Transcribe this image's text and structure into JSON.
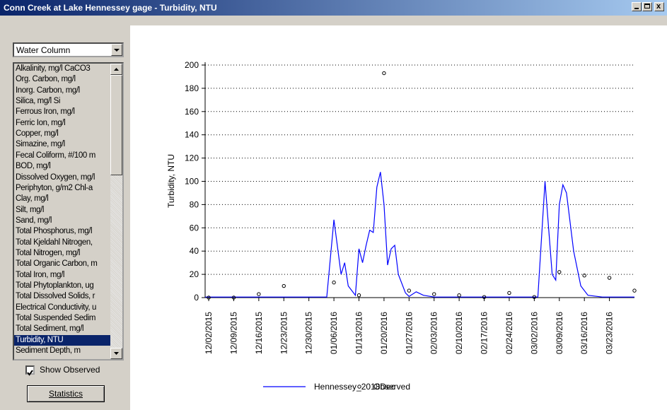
{
  "window": {
    "title": "Conn Creek at Lake Hennessey gage - Turbidity, NTU"
  },
  "panel": {
    "dropdown": "Water Column",
    "list": [
      "Alkalinity, mg/l CaCO3",
      "Org. Carbon, mg/l",
      "Inorg. Carbon, mg/l",
      "Silica, mg/l Si",
      "Ferrous Iron, mg/l",
      "Ferric Ion, mg/l",
      "Copper, mg/l",
      "Simazine, mg/l",
      "Fecal Coliform, #/100 m",
      "BOD, mg/l",
      "Dissolved Oxygen, mg/l",
      "Periphyton, g/m2 Chl-a",
      "Clay, mg/l",
      "Silt, mg/l",
      "Sand, mg/l",
      "Total Phosphorus, mg/l",
      "Total Kjeldahl Nitrogen,",
      "Total Nitrogen, mg/l",
      "Total Organic Carbon, m",
      "Total Iron, mg/l",
      "Total Phytoplankton, ug",
      "Total Dissolved Solids, r",
      "Electrical Conductivity, u",
      "Total Suspended Sedim",
      "Total Sediment, mg/l",
      "Turbidity, NTU",
      "Sediment Depth, m"
    ],
    "selected_index": 25,
    "checkbox": {
      "label": "Show Observed",
      "checked": true
    },
    "button": "Statistics"
  },
  "chart_data": {
    "type": "line",
    "y_label": "Turbidity, NTU",
    "xlim": [
      "2015-12-01",
      "2016-03-30"
    ],
    "xticks": [
      {
        "value": "2015-12-02",
        "label": "12/02/2015"
      },
      {
        "value": "2015-12-09",
        "label": "12/09/2015"
      },
      {
        "value": "2015-12-16",
        "label": "12/16/2015"
      },
      {
        "value": "2015-12-23",
        "label": "12/23/2015"
      },
      {
        "value": "2015-12-30",
        "label": "12/30/2015"
      },
      {
        "value": "2016-01-06",
        "label": "01/06/2016"
      },
      {
        "value": "2016-01-13",
        "label": "01/13/2016"
      },
      {
        "value": "2016-01-20",
        "label": "01/20/2016"
      },
      {
        "value": "2016-01-27",
        "label": "01/27/2016"
      },
      {
        "value": "2016-02-03",
        "label": "02/03/2016"
      },
      {
        "value": "2016-02-10",
        "label": "02/10/2016"
      },
      {
        "value": "2016-02-17",
        "label": "02/17/2016"
      },
      {
        "value": "2016-02-24",
        "label": "02/24/2016"
      },
      {
        "value": "2016-03-02",
        "label": "03/02/2016"
      },
      {
        "value": "2016-03-09",
        "label": "03/09/2016"
      },
      {
        "value": "2016-03-16",
        "label": "03/16/2016"
      },
      {
        "value": "2016-03-23",
        "label": "03/23/2016"
      }
    ],
    "ylim": [
      0,
      200
    ],
    "yticks": [
      0,
      20,
      40,
      60,
      80,
      100,
      120,
      140,
      160,
      180,
      200
    ],
    "grid": true,
    "legend": "bottom",
    "series": [
      {
        "name": "Hennessey_2018Dec",
        "color": "#0000ff",
        "style": "line",
        "x": [
          "2015-12-01",
          "2016-01-04",
          "2016-01-06",
          "2016-01-08",
          "2016-01-09",
          "2016-01-10",
          "2016-01-12",
          "2016-01-13",
          "2016-01-14",
          "2016-01-15",
          "2016-01-16",
          "2016-01-17",
          "2016-01-18",
          "2016-01-19",
          "2016-01-20",
          "2016-01-21",
          "2016-01-22",
          "2016-01-23",
          "2016-01-24",
          "2016-01-26",
          "2016-01-27",
          "2016-01-29",
          "2016-01-31",
          "2016-02-03",
          "2016-03-03",
          "2016-03-05",
          "2016-03-06",
          "2016-03-07",
          "2016-03-08",
          "2016-03-09",
          "2016-03-10",
          "2016-03-11",
          "2016-03-13",
          "2016-03-15",
          "2016-03-17",
          "2016-03-21",
          "2016-03-30"
        ],
        "values": [
          0.5,
          0.5,
          67,
          20,
          30,
          10,
          2,
          42,
          30,
          45,
          58,
          56,
          95,
          108,
          80,
          28,
          42,
          45,
          20,
          4,
          1,
          5,
          2,
          0.5,
          0.5,
          100,
          60,
          20,
          15,
          80,
          97,
          90,
          40,
          10,
          2,
          0.5,
          0.5
        ]
      },
      {
        "name": "Observed",
        "color": "#000000",
        "style": "marker",
        "x": [
          "2015-12-02",
          "2015-12-09",
          "2015-12-16",
          "2015-12-23",
          "2016-01-06",
          "2016-01-13",
          "2016-01-20",
          "2016-01-27",
          "2016-02-03",
          "2016-02-10",
          "2016-02-17",
          "2016-02-24",
          "2016-03-02",
          "2016-03-09",
          "2016-03-16",
          "2016-03-23",
          "2016-03-30"
        ],
        "values": [
          0,
          0,
          3,
          10,
          13,
          2,
          193,
          6,
          3,
          2,
          0.5,
          4,
          0.5,
          22,
          19,
          17,
          6
        ]
      }
    ]
  }
}
